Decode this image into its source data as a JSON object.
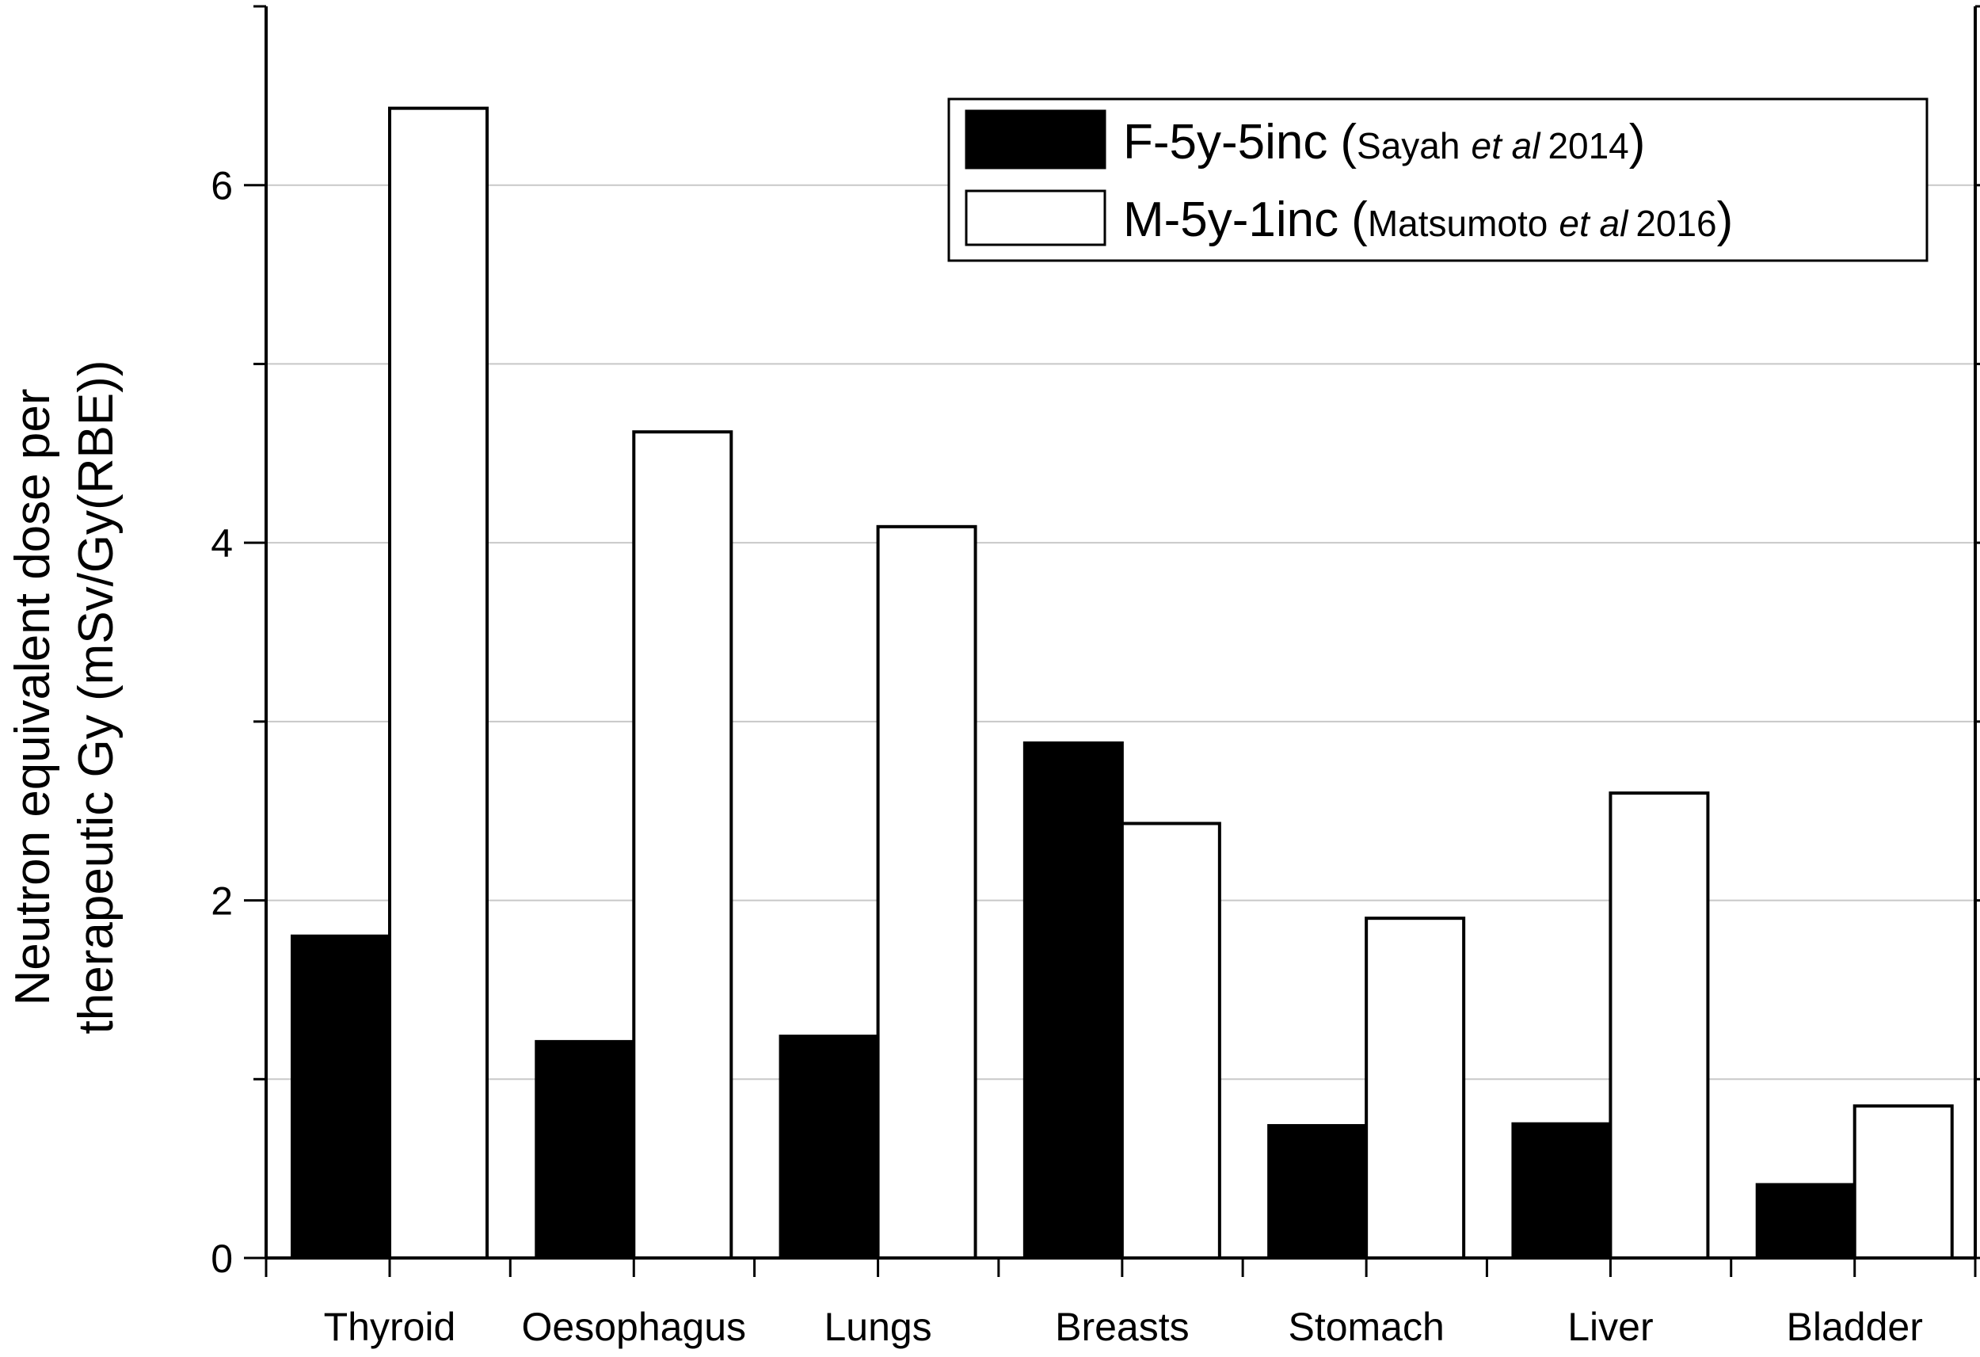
{
  "chart_data": {
    "type": "bar",
    "categories": [
      "Thyroid",
      "Oesophagus",
      "Lungs",
      "Breasts",
      "Stomach",
      "Liver",
      "Bladder"
    ],
    "series": [
      {
        "name": "F-5y-5inc",
        "reference": {
          "author": "Sayah",
          "etal": "et al",
          "year": "2014"
        },
        "color": "#000000",
        "values": [
          1.8,
          1.21,
          1.24,
          2.88,
          0.74,
          0.75,
          0.41
        ]
      },
      {
        "name": "M-5y-1inc",
        "reference": {
          "author": "Matsumoto",
          "etal": "et al",
          "year": "2016"
        },
        "color": "#ffffff",
        "values": [
          6.43,
          4.62,
          4.09,
          2.43,
          1.9,
          2.6,
          0.85
        ]
      }
    ],
    "ylabel_line1": "Neutron equivalent dose per",
    "ylabel_line2": "therapeutic Gy (mSv/Gy(RBE))",
    "ylim": [
      0,
      7
    ],
    "yticks": [
      0,
      2,
      4,
      6
    ],
    "ytick_labels": [
      "0",
      "2",
      "4",
      "6"
    ],
    "grid": true,
    "legend_position": "top-right"
  }
}
